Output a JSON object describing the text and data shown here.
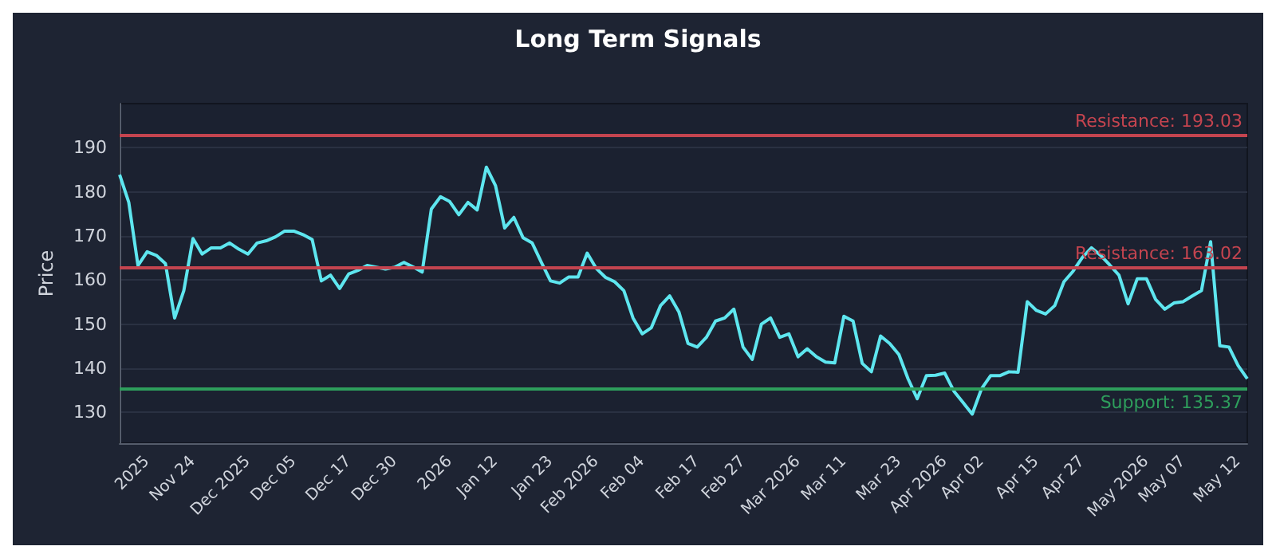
{
  "chart_data": {
    "type": "line",
    "title": "Long Term Signals",
    "ylabel": "Price",
    "categories": [
      null,
      null,
      null,
      "2025",
      null,
      null,
      null,
      null,
      "Nov 24",
      null,
      null,
      null,
      null,
      null,
      "Dec 2025",
      null,
      null,
      null,
      null,
      "Dec 05",
      null,
      null,
      null,
      null,
      null,
      "Dec 17",
      null,
      null,
      null,
      null,
      "Dec 30",
      null,
      null,
      null,
      null,
      null,
      "2026",
      null,
      null,
      null,
      null,
      "Jan 12",
      null,
      null,
      null,
      null,
      null,
      "Jan 23",
      null,
      null,
      null,
      null,
      "Feb 2026",
      null,
      null,
      null,
      null,
      "Feb 04",
      null,
      null,
      null,
      null,
      null,
      "Feb 17",
      null,
      null,
      null,
      null,
      "Feb 27",
      null,
      null,
      null,
      null,
      null,
      "Mar 2026",
      null,
      null,
      null,
      null,
      "Mar 11",
      null,
      null,
      null,
      null,
      null,
      "Mar 23",
      null,
      null,
      null,
      null,
      "Apr 2026",
      null,
      null,
      null,
      "Apr 02",
      null,
      null,
      null,
      null,
      null,
      "Apr 15",
      null,
      null,
      null,
      null,
      "Apr 27",
      null,
      null,
      null,
      null,
      null,
      null,
      "May 2026",
      null,
      null,
      null,
      "May 07",
      null,
      null,
      null,
      null,
      null,
      "May 12",
      null
    ],
    "series": [
      {
        "color": "#5ee6ef",
        "values": [
          183.9,
          177.6,
          163.3,
          166.4,
          165.6,
          163.7,
          151.4,
          157.6,
          169.4,
          165.9,
          167.3,
          167.3,
          168.4,
          167,
          165.9,
          168.4,
          168.9,
          169.8,
          171.1,
          171.1,
          170.3,
          169.2,
          159.8,
          161.1,
          158.1,
          161.4,
          162.2,
          163.3,
          162.9,
          162.5,
          162.9,
          164,
          163,
          161.8,
          176.1,
          178.9,
          177.8,
          174.8,
          177.6,
          175.9,
          185.6,
          181.4,
          171.8,
          174.2,
          169.6,
          168.4,
          164,
          159.8,
          159.3,
          160.7,
          160.7,
          166.1,
          162.6,
          160.6,
          159.6,
          157.6,
          151.4,
          147.8,
          149.2,
          154.2,
          156.4,
          152.8,
          145.6,
          144.8,
          147,
          150.7,
          151.4,
          153.4,
          144.8,
          142,
          150,
          151.4,
          147,
          147.8,
          142.6,
          144.4,
          142.6,
          141.4,
          141.2,
          151.8,
          150.7,
          141.1,
          139.2,
          147.3,
          145.6,
          143.1,
          137.6,
          133.1,
          138.3,
          138.4,
          138.9,
          134.8,
          132.2,
          129.6,
          135.3,
          138.3,
          138.3,
          139.2,
          139.1,
          155.1,
          153.1,
          152.3,
          154.2,
          159.6,
          162,
          165.1,
          167.3,
          165.6,
          163.4,
          161.1,
          154.6,
          160.3,
          160.3,
          155.6,
          153.4,
          154.8,
          155.1,
          156.4,
          157.6,
          168.7,
          145.1,
          144.8,
          140.6,
          137.6
        ]
      }
    ],
    "ylim": [
      123,
      200
    ],
    "yticks": [
      130,
      140,
      150,
      160,
      170,
      180,
      190
    ],
    "grid": "y",
    "marker": "none",
    "line_style": "solid",
    "ref_lines": [
      {
        "axis": "y",
        "value": 193.03,
        "label": "Resistance: 193.03",
        "color": "#c4444f"
      },
      {
        "axis": "y",
        "value": 163.02,
        "label": "Resistance: 163.02",
        "color": "#c4444f"
      },
      {
        "axis": "y",
        "value": 135.37,
        "label": "Support: 135.37",
        "color": "#2e9e5c"
      }
    ]
  }
}
